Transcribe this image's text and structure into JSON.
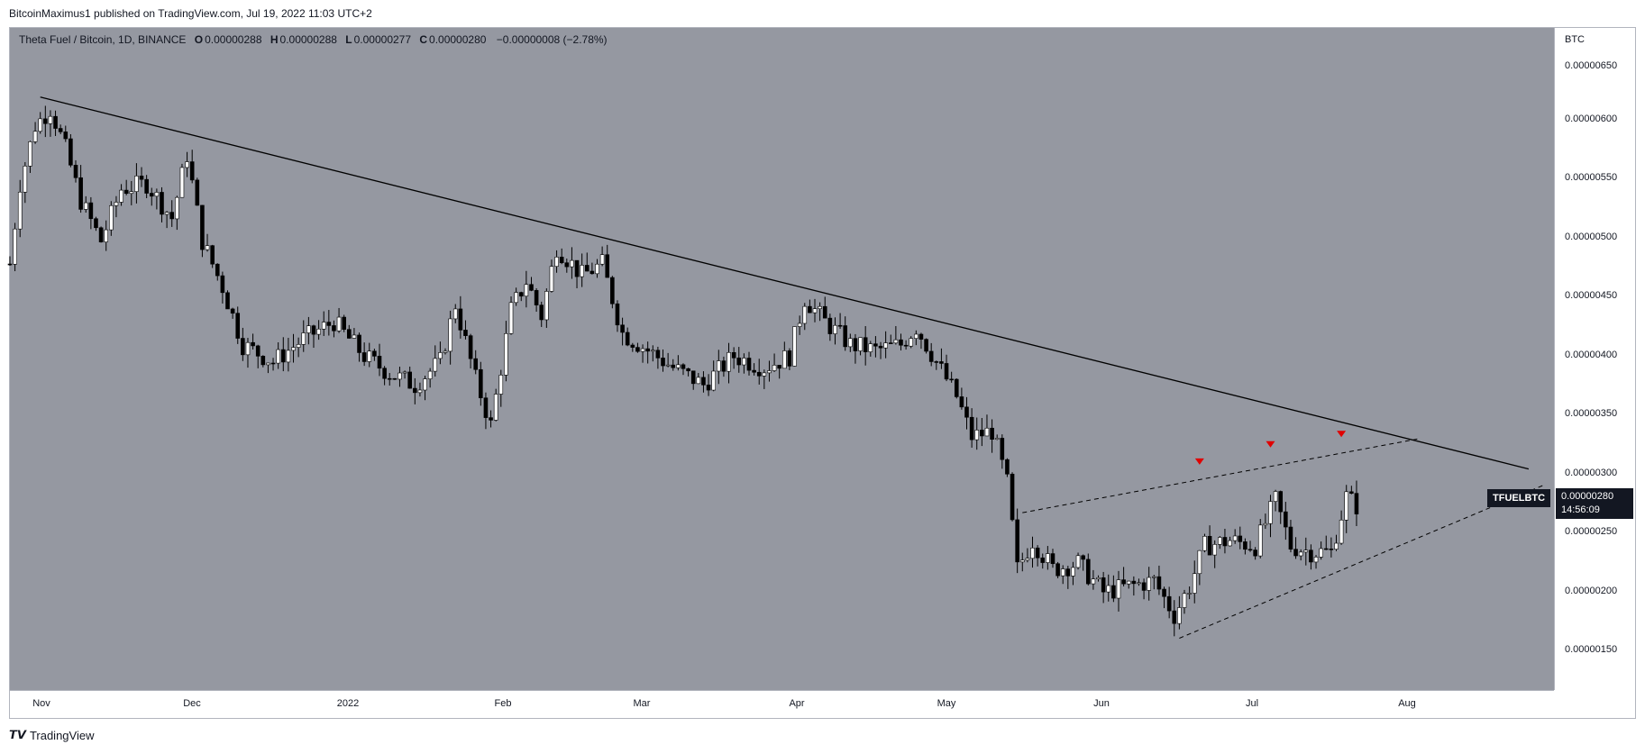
{
  "header": {
    "publisher_line": "BitcoinMaximus1 published on TradingView.com, Jul 19, 2022 11:03 UTC+2"
  },
  "legend": {
    "title": "Theta Fuel / Bitcoin, 1D, BINANCE",
    "open_key": "O",
    "open": "0.00000288",
    "high_key": "H",
    "high": "0.00000288",
    "low_key": "L",
    "low": "0.00000277",
    "close_key": "C",
    "close": "0.00000280",
    "change": "−0.00000008 (−2.78%)"
  },
  "price_axis": {
    "unit": "BTC",
    "ticks": [
      "0.00000650",
      "0.00000600",
      "0.00000550",
      "0.00000500",
      "0.00000450",
      "0.00000400",
      "0.00000350",
      "0.00000300",
      "0.00000250",
      "0.00000200",
      "0.00000150"
    ]
  },
  "time_axis": {
    "ticks": [
      "Nov",
      "Dec",
      "2022",
      "Feb",
      "Mar",
      "Apr",
      "May",
      "Jun",
      "Jul",
      "Aug"
    ]
  },
  "symbol_tag": "TFUELBTC",
  "last_price": {
    "price": "0.00000280",
    "countdown": "14:56:09"
  },
  "footer": {
    "logo_mark": "𝙏𝙑",
    "brand": "TradingView"
  },
  "colors": {
    "plot_bg": "#9598a1",
    "up_candle": "#ffffff",
    "down_candle": "#000000",
    "marker": "#e00000",
    "trendline": "#000000"
  },
  "chart_data": {
    "type": "candlestick",
    "title": "Theta Fuel / Bitcoin, 1D, BINANCE",
    "ylabel": "BTC",
    "ylim": [
      1.2e-06,
      6.95e-06
    ],
    "x_range": [
      "2021-10-26",
      "2022-08-27"
    ],
    "grid": false,
    "price_points": [
      [
        "2021-10-26",
        4.9e-06
      ],
      [
        "2021-10-28",
        5.6e-06
      ],
      [
        "2021-10-31",
        6.1e-06
      ],
      [
        "2021-11-03",
        6.25e-06
      ],
      [
        "2021-11-06",
        5.9e-06
      ],
      [
        "2021-11-09",
        5.45e-06
      ],
      [
        "2021-11-13",
        5.1e-06
      ],
      [
        "2021-11-17",
        5.55e-06
      ],
      [
        "2021-11-22",
        5.6e-06
      ],
      [
        "2021-11-27",
        5.3e-06
      ],
      [
        "2021-11-30",
        5.85e-06
      ],
      [
        "2021-12-03",
        5.1e-06
      ],
      [
        "2021-12-07",
        4.7e-06
      ],
      [
        "2021-12-11",
        4.2e-06
      ],
      [
        "2021-12-17",
        4.05e-06
      ],
      [
        "2021-12-23",
        4.25e-06
      ],
      [
        "2021-12-29",
        4.4e-06
      ],
      [
        "2022-01-04",
        4.1e-06
      ],
      [
        "2022-01-09",
        3.95e-06
      ],
      [
        "2022-01-14",
        3.85e-06
      ],
      [
        "2022-01-19",
        4.05e-06
      ],
      [
        "2022-01-22",
        4.55e-06
      ],
      [
        "2022-01-26",
        3.9e-06
      ],
      [
        "2022-01-29",
        3.5e-06
      ],
      [
        "2022-02-02",
        4.5e-06
      ],
      [
        "2022-02-05",
        4.75e-06
      ],
      [
        "2022-02-08",
        4.45e-06
      ],
      [
        "2022-02-11",
        5.05e-06
      ],
      [
        "2022-02-16",
        4.8e-06
      ],
      [
        "2022-02-20",
        4.9e-06
      ],
      [
        "2022-02-24",
        4.3e-06
      ],
      [
        "2022-03-01",
        4.15e-06
      ],
      [
        "2022-03-06",
        4e-06
      ],
      [
        "2022-03-12",
        3.85e-06
      ],
      [
        "2022-03-18",
        4.1e-06
      ],
      [
        "2022-03-24",
        4e-06
      ],
      [
        "2022-03-29",
        4.1e-06
      ],
      [
        "2022-04-01",
        4.6e-06
      ],
      [
        "2022-04-05",
        4.4e-06
      ],
      [
        "2022-04-10",
        4.2e-06
      ],
      [
        "2022-04-15",
        4.15e-06
      ],
      [
        "2022-04-20",
        4.2e-06
      ],
      [
        "2022-04-23",
        4.35e-06
      ],
      [
        "2022-04-27",
        4.05e-06
      ],
      [
        "2022-05-01",
        3.75e-06
      ],
      [
        "2022-05-04",
        3.4e-06
      ],
      [
        "2022-05-08",
        3.45e-06
      ],
      [
        "2022-05-11",
        3e-06
      ],
      [
        "2022-05-13",
        2.25e-06
      ],
      [
        "2022-05-16",
        2.5e-06
      ],
      [
        "2022-05-20",
        2.25e-06
      ],
      [
        "2022-05-25",
        2.3e-06
      ],
      [
        "2022-05-30",
        2.05e-06
      ],
      [
        "2022-06-04",
        2.1e-06
      ],
      [
        "2022-06-09",
        2.15e-06
      ],
      [
        "2022-06-13",
        1.85e-06
      ],
      [
        "2022-06-16",
        2.1e-06
      ],
      [
        "2022-06-19",
        2.45e-06
      ],
      [
        "2022-06-24",
        2.5e-06
      ],
      [
        "2022-06-29",
        2.45e-06
      ],
      [
        "2022-07-03",
        2.85e-06
      ],
      [
        "2022-07-06",
        2.45e-06
      ],
      [
        "2022-07-10",
        2.4e-06
      ],
      [
        "2022-07-14",
        2.4e-06
      ],
      [
        "2022-07-17",
        2.88e-06
      ],
      [
        "2022-07-19",
        2.8e-06
      ]
    ],
    "lines": [
      {
        "name": "descending trendline",
        "style": "solid",
        "from": [
          "2021-11-01",
          6.35e-06
        ],
        "to": [
          "2022-08-22",
          3.12e-06
        ]
      },
      {
        "name": "wedge resistance",
        "style": "dashed",
        "from": [
          "2022-05-14",
          2.74e-06
        ],
        "to": [
          "2022-07-31",
          3.38e-06
        ]
      },
      {
        "name": "wedge support",
        "style": "dashed",
        "from": [
          "2022-06-14",
          1.65e-06
        ],
        "to": [
          "2022-08-25",
          2.98e-06
        ]
      }
    ],
    "markers": [
      {
        "shape": "triangle-down",
        "date": "2022-06-18",
        "price": 3.18e-06
      },
      {
        "shape": "triangle-down",
        "date": "2022-07-02",
        "price": 3.33e-06
      },
      {
        "shape": "triangle-down",
        "date": "2022-07-16",
        "price": 3.42e-06
      }
    ]
  }
}
